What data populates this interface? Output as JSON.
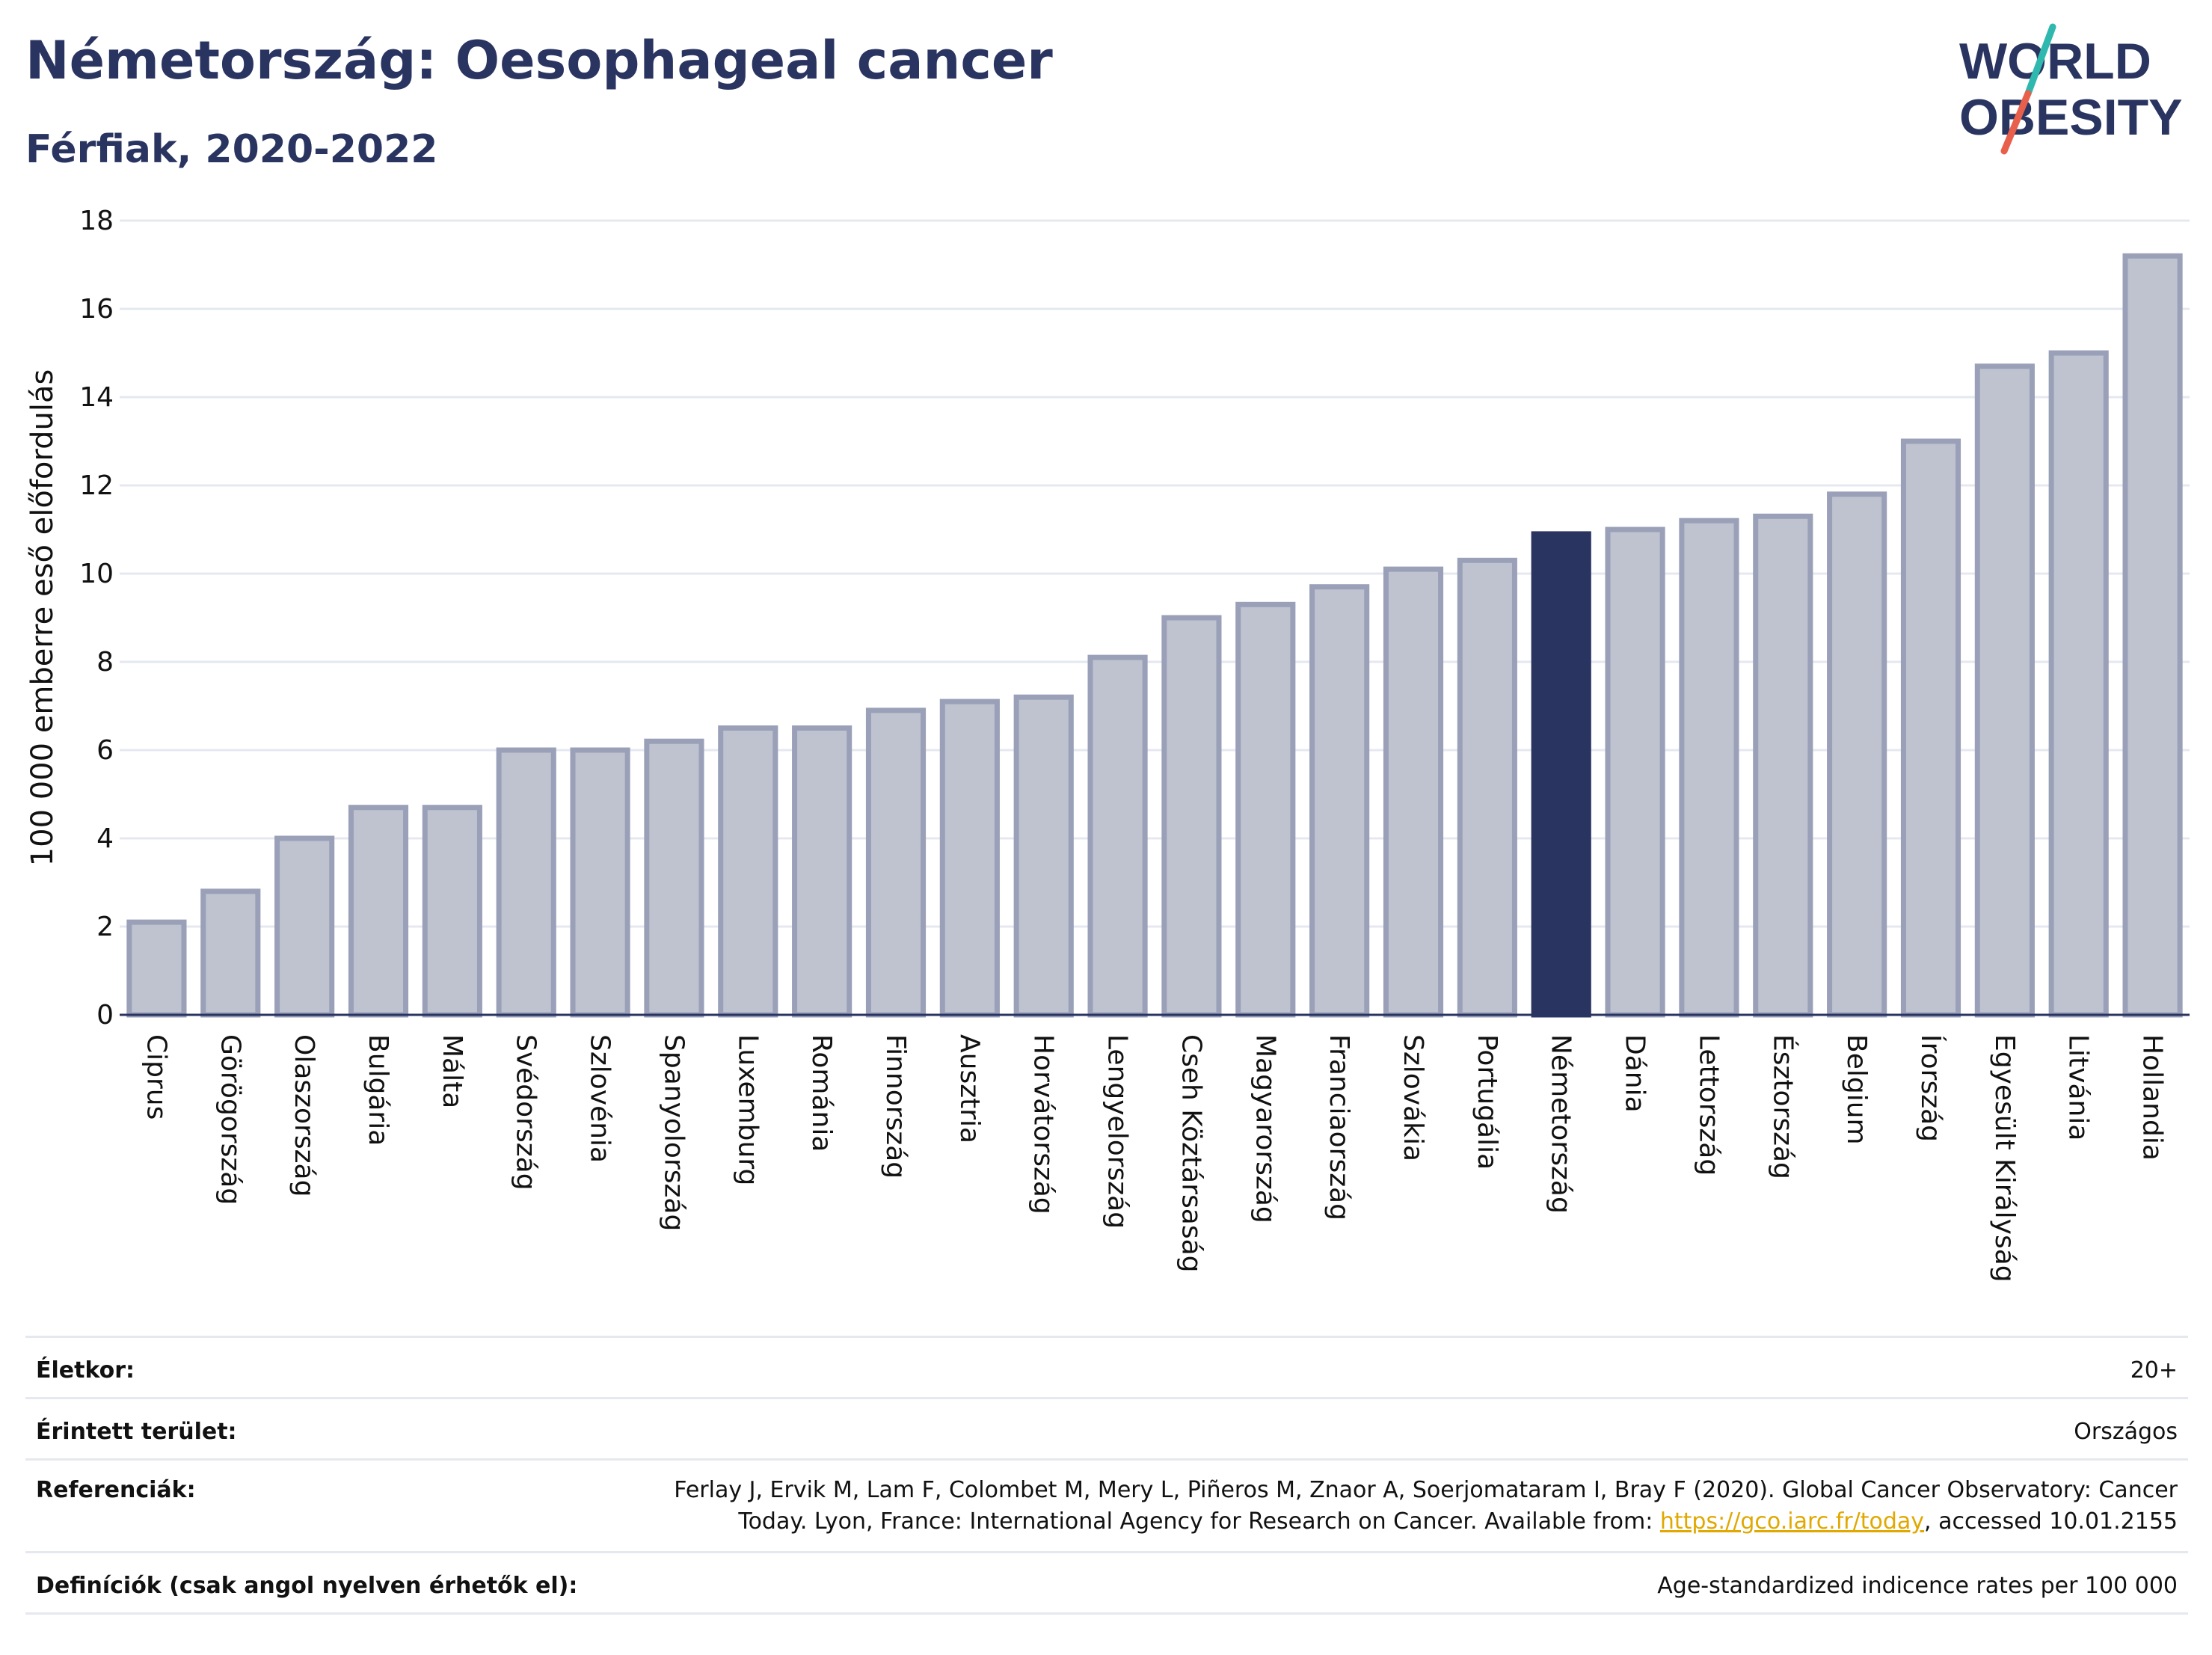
{
  "header": {
    "title": "Németország: Oesophageal cancer",
    "subtitle": "Férfiak, 2020-2022"
  },
  "logo": {
    "line1": "WORLD",
    "line2": "OBESITY",
    "text_color": "#2a3460",
    "slash_colors": [
      "#2fb8ad",
      "#e8604c"
    ]
  },
  "chart_data": {
    "type": "bar",
    "title": "Németország: Oesophageal cancer",
    "subtitle": "Férfiak, 2020-2022",
    "ylabel": "100 000 emberre eső előfordulás",
    "xlabel": "",
    "ylim": [
      0,
      18
    ],
    "yticks": [
      "0",
      "2",
      "4",
      "6",
      "8",
      "10",
      "12",
      "14",
      "16",
      "18"
    ],
    "grid": true,
    "categories": [
      "Ciprus",
      "Görögország",
      "Olaszország",
      "Bulgária",
      "Málta",
      "Svédország",
      "Szlovénia",
      "Spanyolország",
      "Luxemburg",
      "Románia",
      "Finnország",
      "Ausztria",
      "Horvátország",
      "Lengyelország",
      "Cseh Köztársaság",
      "Magyarország",
      "Franciaország",
      "Szlovákia",
      "Portugália",
      "Németország",
      "Dánia",
      "Lettország",
      "Észtország",
      "Belgium",
      "Írország",
      "Egyesült Királyság",
      "Litvánia",
      "Hollandia"
    ],
    "values": [
      2.1,
      2.8,
      4.0,
      4.7,
      4.7,
      6.0,
      6.0,
      6.2,
      6.5,
      6.5,
      6.9,
      7.1,
      7.2,
      8.1,
      9.0,
      9.3,
      9.7,
      10.1,
      10.3,
      10.9,
      11.0,
      11.2,
      11.3,
      11.8,
      13.0,
      14.7,
      15.0,
      17.2
    ],
    "highlight": "Németország",
    "colors": {
      "bar": "#bfc2cf",
      "bar_border": "#9aa0b8",
      "highlight": "#2a3460",
      "grid": "#e6e8f0",
      "axis": "#2a3460"
    }
  },
  "meta": {
    "rows": [
      {
        "label": "Életkor:",
        "value": "20+"
      },
      {
        "label": "Érintett terület:",
        "value": "Országos"
      },
      {
        "label": "Referenciák:",
        "value_line1": "Ferlay J, Ervik M, Lam F, Colombet M, Mery L, Piñeros M, Znaor A, Soerjomataram I, Bray F (2020). Global Cancer Observatory: Cancer",
        "value_line2_pre": "Today. Lyon, France: International Agency for Research on Cancer. Available from: ",
        "value_link": "https://gco.iarc.fr/today",
        "value_line2_post": ", accessed 10.01.2155"
      },
      {
        "label": "Definíciók (csak angol nyelven érhetők el):",
        "value": "Age-standardized indicence rates per 100 000"
      }
    ]
  }
}
